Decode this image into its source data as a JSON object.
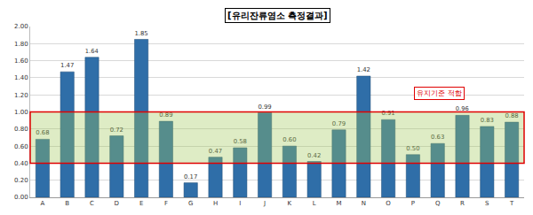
{
  "chart_data": {
    "type": "bar",
    "title": "[유리잔류염소 측정결과]",
    "categories": [
      "A",
      "B",
      "C",
      "D",
      "E",
      "F",
      "G",
      "H",
      "I",
      "J",
      "K",
      "L",
      "M",
      "N",
      "O",
      "P",
      "Q",
      "R",
      "S",
      "T"
    ],
    "values": [
      0.68,
      1.47,
      1.64,
      0.72,
      1.85,
      0.89,
      0.17,
      0.47,
      0.58,
      0.99,
      0.6,
      0.42,
      0.79,
      1.42,
      0.91,
      0.5,
      0.63,
      0.96,
      0.83,
      0.88
    ],
    "value_labels": [
      "0.68",
      "1.47",
      "1.64",
      "0.72",
      "1.85",
      "0.89",
      "0.17",
      "0.47",
      "0.58",
      "0.99",
      "0.60",
      "0.42",
      "0.79",
      "1.42",
      "0.91",
      "0.50",
      "0.63",
      "0.96",
      "0.83",
      "0.88"
    ],
    "data_labels": true,
    "color": "#2f6ea8",
    "ylim": [
      0,
      2
    ],
    "yticks": [
      {
        "value": 0,
        "label": "0.00"
      },
      {
        "value": 0.2,
        "label": "0.20"
      },
      {
        "value": 0.4,
        "label": "0.40"
      },
      {
        "value": 0.6,
        "label": "0.60"
      },
      {
        "value": 0.8,
        "label": "0.80"
      },
      {
        "value": 1,
        "label": "1.00"
      },
      {
        "value": 1.2,
        "label": "1.20"
      },
      {
        "value": 1.4,
        "label": "1.40"
      },
      {
        "value": 1.6,
        "label": "1.60"
      },
      {
        "value": 1.8,
        "label": "1.80"
      },
      {
        "value": 2,
        "label": "2.00"
      }
    ],
    "grid": true,
    "band": {
      "from": 0.4,
      "to": 1.0,
      "label": "유지기준 적합"
    }
  }
}
